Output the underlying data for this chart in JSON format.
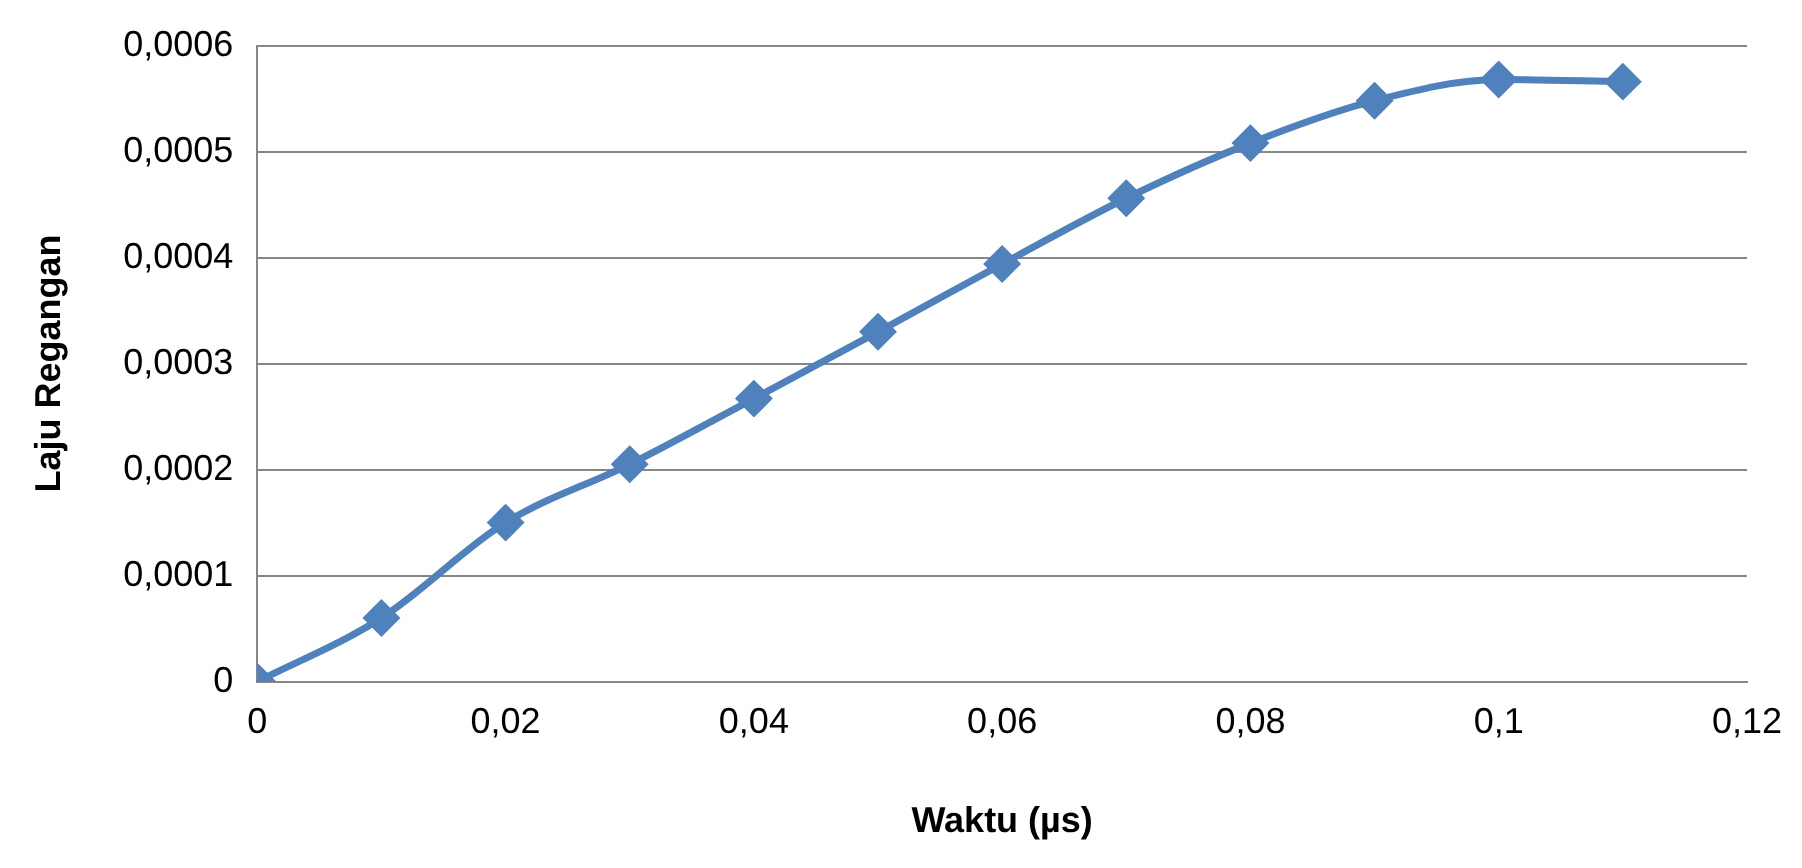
{
  "chart_data": {
    "type": "line",
    "xlabel": "Waktu (µs)",
    "ylabel": "Laju Regangan",
    "x": [
      0,
      0.01,
      0.02,
      0.03,
      0.04,
      0.05,
      0.06,
      0.07,
      0.08,
      0.09,
      0.1,
      0.11
    ],
    "series": [
      {
        "color": "#4f81bd",
        "values": [
          0,
          6e-05,
          0.00015,
          0.000205,
          0.000267,
          0.00033,
          0.000394,
          0.000456,
          0.000508,
          0.000548,
          0.000568,
          0.000566
        ]
      }
    ],
    "xlim": [
      0,
      0.12
    ],
    "xticks": [
      0,
      {
        "value": 0.02,
        "label": "0,02"
      },
      {
        "value": 0.04,
        "label": "0,04"
      },
      {
        "value": 0.06,
        "label": "0,06"
      },
      {
        "value": 0.08,
        "label": "0,08"
      },
      {
        "value": 0.1,
        "label": "0,1"
      },
      {
        "value": 0.12,
        "label": "0,12"
      }
    ],
    "ylim": [
      0,
      0.0006
    ],
    "yticks": [
      0,
      {
        "value": 0.0001,
        "label": "0,0001"
      },
      {
        "value": 0.0002,
        "label": "0,0002"
      },
      {
        "value": 0.0003,
        "label": "0,0003"
      },
      {
        "value": 0.0004,
        "label": "0,0004"
      },
      {
        "value": 0.0005,
        "label": "0,0005"
      },
      {
        "value": 0.0006,
        "label": "0,0006"
      }
    ],
    "grid": "y",
    "marker": "diamond",
    "line_style": "solid",
    "legend": false
  }
}
